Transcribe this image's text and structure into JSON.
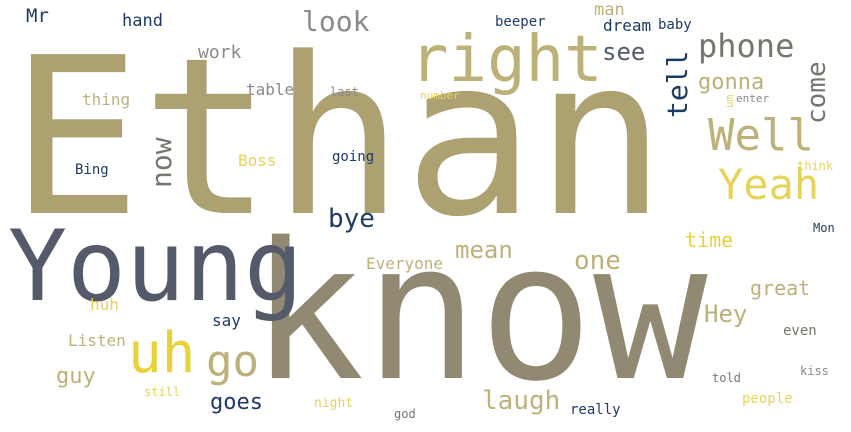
{
  "words": {
    "ethan": "Ethan",
    "know": "know",
    "young": "Young",
    "right": "right",
    "well": "Well",
    "yeah": "Yeah",
    "phone": "phone",
    "uh": "uh",
    "go": "go",
    "look": "look",
    "bye": "bye",
    "now": "now",
    "tell": "tell",
    "come": "come",
    "mean": "mean",
    "one": "one",
    "laugh": "laugh",
    "hey": "Hey",
    "goes": "goes",
    "guy": "guy",
    "see": "see",
    "gonna": "gonna",
    "work": "work",
    "hand": "hand",
    "mr": "Mr",
    "thing": "thing",
    "table": "table",
    "time": "time",
    "great": "great",
    "everyone": "Everyone",
    "boss": "Boss",
    "listen": "Listen",
    "say": "say",
    "huh": "huh",
    "man": "man",
    "dream": "dream",
    "baby": "baby",
    "beeper": "beeper",
    "last": "last",
    "number": "number",
    "um": "um",
    "enter": "enter",
    "going": "going",
    "bing": "Bing",
    "think": "think",
    "mon": "Mon",
    "even": "even",
    "told": "told",
    "kiss": "kiss",
    "still": "still",
    "night": "night",
    "god": "god",
    "really": "really",
    "people": "people"
  }
}
